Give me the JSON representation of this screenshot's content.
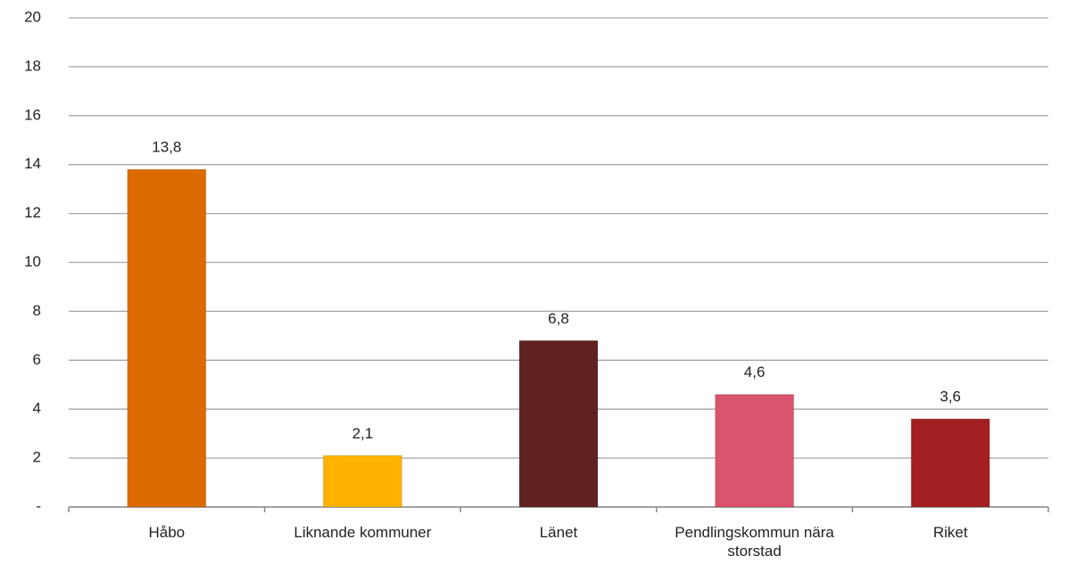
{
  "chart_data": {
    "type": "bar",
    "categories": [
      "Håbo",
      "Liknande kommuner",
      "Länet",
      "Pendlingskommun nära storstad",
      "Riket"
    ],
    "values": [
      13.8,
      2.1,
      6.8,
      4.6,
      3.6
    ],
    "value_labels": [
      "13,8",
      "2,1",
      "6,8",
      "4,6",
      "3,6"
    ],
    "colors": [
      "#dd6a00",
      "#ffb300",
      "#5f2220",
      "#d9546c",
      "#a31f22"
    ],
    "ylim": [
      0,
      20
    ],
    "yticks": [
      {
        "value": 0,
        "label": "-"
      },
      2,
      4,
      6,
      8,
      10,
      12,
      14,
      16,
      18,
      20
    ],
    "grid": true
  }
}
